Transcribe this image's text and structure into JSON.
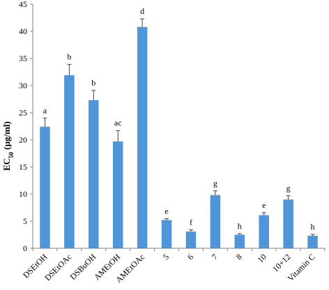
{
  "chart_data": {
    "type": "bar",
    "ylabel": {
      "main": "EC",
      "sub": "50",
      "unit": " (µg/ml)"
    },
    "ylim": [
      0,
      45
    ],
    "yticks": [
      0,
      5,
      10,
      15,
      20,
      25,
      30,
      35,
      40,
      45
    ],
    "grid": false,
    "bar_color": "#4f95da",
    "categories": [
      "DSEtOH",
      "DSEtOAc",
      "DSBuOH",
      "AMEtOH",
      "AMEtOAc",
      "5",
      "6",
      "7",
      "8",
      "10",
      "10+12",
      "Vitamin C"
    ],
    "values": [
      22.4,
      31.9,
      27.3,
      19.7,
      40.8,
      5.2,
      3.1,
      9.8,
      2.5,
      6.1,
      9.0,
      2.3
    ],
    "errors": [
      1.6,
      2.0,
      1.8,
      2.0,
      1.5,
      0.25,
      0.3,
      0.8,
      0.2,
      0.45,
      0.7,
      0.25
    ],
    "significance_letters": [
      "a",
      "b",
      "b",
      "ac",
      "d",
      "e",
      "f",
      "g",
      "h",
      "e",
      "g",
      "h"
    ]
  }
}
